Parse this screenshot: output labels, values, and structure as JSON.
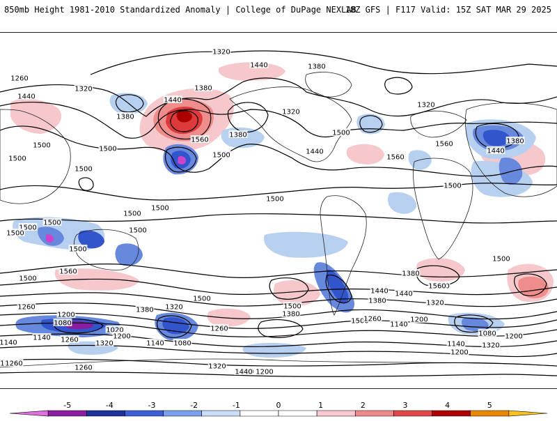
{
  "header": {
    "title_left": "850mb Height 1981-2010 Standardized Anomaly | College of DuPage NEXLAB",
    "title_right": "18Z GFS | F117 Valid: 15Z SAT MAR 29 2025"
  },
  "map": {
    "contour_labels": [
      "1320",
      "1440",
      "1380",
      "1260",
      "1320",
      "1380",
      "1440",
      "1320",
      "1440",
      "1380",
      "1560",
      "1500",
      "1380",
      "1500",
      "1440",
      "1500",
      "1500",
      "1500",
      "1560",
      "1560",
      "1500",
      "1320",
      "1380",
      "1440",
      "1500",
      "1500",
      "1500",
      "1500",
      "1500",
      "1500",
      "1500",
      "1500",
      "1500",
      "1500",
      "1560",
      "1500",
      "1440",
      "1380",
      "1500",
      "1260",
      "1200",
      "1380",
      "1320",
      "1260",
      "1080",
      "1020",
      "1140",
      "1200",
      "1320",
      "1260",
      "1140",
      "1080",
      "1200",
      "1140",
      "1320",
      "1500",
      "1380",
      "1560",
      "1440",
      "1320",
      "1380",
      "1260",
      "1200",
      "1140",
      "1080",
      "1200",
      "1140",
      "1080",
      "1320",
      "1380",
      "1200",
      "1260",
      "1260",
      "1440",
      "1500",
      "1500"
    ],
    "anomaly_palette": {
      "neg_strong": "#cc44cc",
      "neg_4": "#2233aa",
      "neg_3": "#3355cc",
      "neg_2": "#6688dd",
      "neg_1": "#b8d0f0",
      "pos_1": "#f6c8cc",
      "pos_2": "#ef8c8c",
      "pos_3": "#dd3b3b",
      "pos_4": "#aa0000"
    }
  },
  "colorbar": {
    "ticks": [
      "-5",
      "-4",
      "-3",
      "-2",
      "-1",
      "0",
      "1",
      "2",
      "3",
      "4",
      "5"
    ],
    "colors": [
      "#e070e0",
      "#8a1ea0",
      "#1d2f9a",
      "#3d5fd6",
      "#7aa0ee",
      "#c9dcf8",
      "#ffffff",
      "#ffffff",
      "#f9c9cf",
      "#ee8a8a",
      "#e24848",
      "#b00000",
      "#e88a00",
      "#f8c020"
    ]
  }
}
